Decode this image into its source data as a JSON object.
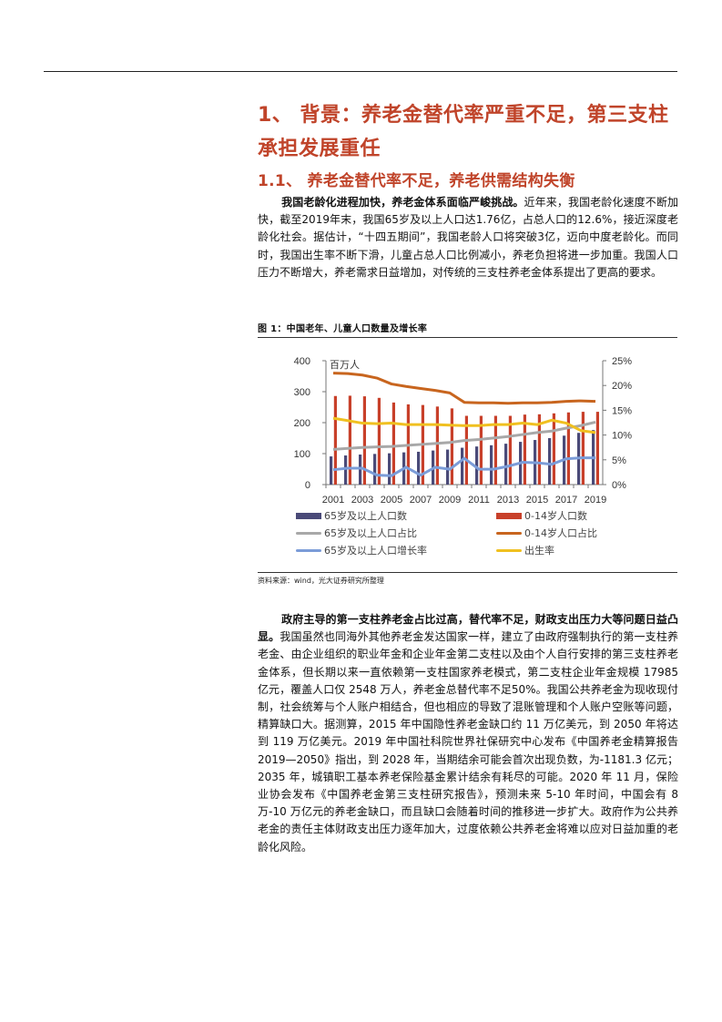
{
  "section": {
    "title": "1、 背景：养老金替代率严重不足，第三支柱承担发展重任",
    "subtitle": "1.1、 养老金替代率不足，养老供需结构失衡"
  },
  "para1": {
    "lead": "我国老龄化进程加快，养老金体系面临严峻挑战。",
    "body": "近年来，我国老龄化速度不断加快，截至2019年末，我国65岁及以上人口达1.76亿，占总人口的12.6%，接近深度老龄化社会。据估计，“十四五期间”，我国老龄人口将突破3亿，迈向中度老龄化。而同时，我国出生率不断下滑，儿童占总人口比例减小，养老负担将进一步加重。我国人口压力不断增大，养老需求日益增加，对传统的三支柱养老金体系提出了更高的要求。"
  },
  "figure": {
    "title": "图 1：中国老年、儿童人口数量及增长率",
    "source": "资料来源：wind，光大证券研究所整理"
  },
  "chart_data": {
    "type": "bar",
    "unit_label": "百万人",
    "x": [
      2001,
      2002,
      2003,
      2004,
      2005,
      2006,
      2007,
      2008,
      2009,
      2010,
      2011,
      2012,
      2013,
      2014,
      2015,
      2016,
      2017,
      2018,
      2019
    ],
    "x_ticks": [
      "2001",
      "2003",
      "2005",
      "2007",
      "2009",
      "2011",
      "2013",
      "2015",
      "2017",
      "2019"
    ],
    "left_axis": {
      "min": 0,
      "max": 400,
      "ticks": [
        "0",
        "100",
        "200",
        "300",
        "400"
      ]
    },
    "right_axis": {
      "min": 0,
      "max": 25,
      "ticks": [
        "0%",
        "5%",
        "10%",
        "15%",
        "20%",
        "25%"
      ]
    },
    "bar_series": [
      {
        "name": "65岁及以上人口数",
        "color": "#4a4a78",
        "axis": "left",
        "values": [
          91,
          94,
          97,
          99,
          101,
          104,
          106,
          110,
          113,
          119,
          123,
          127,
          132,
          138,
          144,
          150,
          158,
          167,
          176
        ]
      },
      {
        "name": "0-14岁人口数",
        "color": "#c8402a",
        "axis": "left",
        "values": [
          286,
          287,
          285,
          280,
          265,
          259,
          257,
          252,
          246,
          222,
          222,
          222,
          222,
          226,
          227,
          230,
          233,
          235,
          235
        ]
      }
    ],
    "line_series": [
      {
        "name": "65岁及以上人口占比",
        "color": "#a8a8a8",
        "axis": "right",
        "values": [
          7.1,
          7.3,
          7.5,
          7.6,
          7.7,
          7.9,
          8.1,
          8.3,
          8.5,
          8.9,
          9.1,
          9.4,
          9.7,
          10.1,
          10.5,
          10.8,
          11.4,
          11.9,
          12.6
        ]
      },
      {
        "name": "0-14岁人口占比",
        "color": "#c8651e",
        "axis": "right",
        "values": [
          22.5,
          22.4,
          22.1,
          21.5,
          20.3,
          19.8,
          19.4,
          19.0,
          18.5,
          16.6,
          16.5,
          16.5,
          16.4,
          16.5,
          16.5,
          16.6,
          16.8,
          16.9,
          16.8
        ]
      },
      {
        "name": "65岁及以上人口增长率",
        "color": "#7b9cd8",
        "axis": "right",
        "values": [
          3.0,
          3.3,
          3.3,
          1.9,
          1.8,
          3.5,
          1.9,
          3.5,
          3.1,
          5.3,
          3.1,
          3.1,
          3.7,
          4.5,
          4.4,
          4.1,
          5.2,
          5.4,
          5.4
        ]
      },
      {
        "name": "出生率",
        "color": "#f0c020",
        "axis": "right",
        "values": [
          13.4,
          12.9,
          12.4,
          12.3,
          12.4,
          12.1,
          12.1,
          12.1,
          12.0,
          11.9,
          11.9,
          12.1,
          12.1,
          12.4,
          12.1,
          13.0,
          12.4,
          10.9,
          10.5
        ]
      }
    ],
    "grid": false,
    "legend_position": "bottom"
  },
  "para2": {
    "lead": "政府主导的第一支柱养老金占比过高，替代率不足，财政支出压力大等问题日益凸显。",
    "body": "我国虽然也同海外其他养老金发达国家一样，建立了由政府强制执行的第一支柱养老金、由企业组织的职业年金和企业年金第二支柱以及由个人自行安排的第三支柱养老金体系，但长期以来一直依赖第一支柱国家养老模式，第二支柱企业年金规模 17985 亿元，覆盖人口仅 2548 万人，养老金总替代率不足50%。我国公共养老金为现收现付制，社会统筹与个人账户相结合，但也相应的导致了混账管理和个人账户空账等问题，精算缺口大。据测算，2015 年中国隐性养老金缺口约 11 万亿美元，到 2050 年将达到 119 万亿美元。2019 年中国社科院世界社保研究中心发布《中国养老金精算报告 2019—2050》指出，到 2028 年，当期结余可能会首次出现负数，为-1181.3 亿元；2035 年，城镇职工基本养老保险基金累计结余有耗尽的可能。2020 年 11 月，保险业协会发布《中国养老金第三支柱研究报告》，预测未来 5-10 年时间，中国会有 8 万-10 万亿元的养老金缺口，而且缺口会随着时间的推移进一步扩大。政府作为公共养老金的责任主体财政支出压力逐年加大，过度依赖公共养老金将难以应对日益加重的老龄化风险。"
  }
}
